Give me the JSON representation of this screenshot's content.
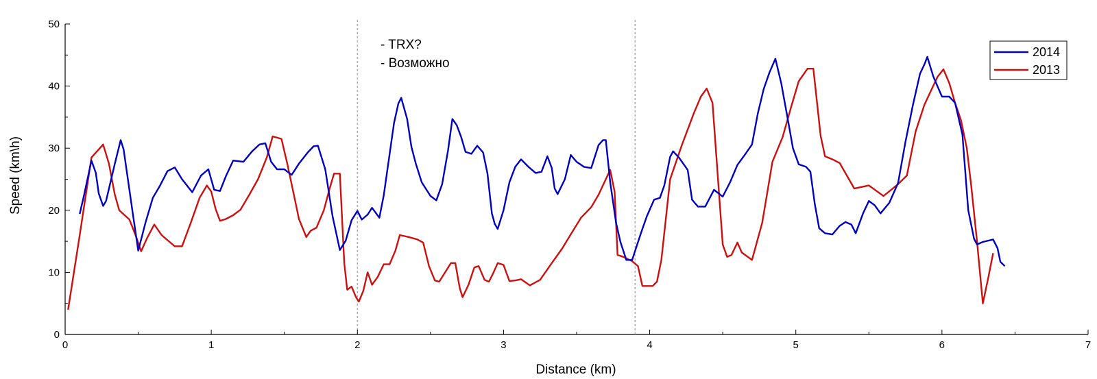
{
  "chart_data": {
    "type": "line",
    "xlabel": "Distance (km)",
    "ylabel": "Speed (km\\h)",
    "xlim": [
      0,
      7
    ],
    "ylim": [
      0,
      50
    ],
    "xticks": [
      "0",
      "1",
      "2",
      "3",
      "4",
      "5",
      "6",
      "7"
    ],
    "yticks": [
      "0",
      "10",
      "20",
      "30",
      "40",
      "50"
    ],
    "grid": false,
    "legend_position": "top-right",
    "vlines": [
      2.0,
      3.9
    ],
    "annotations": [
      "- TRX?",
      "- Возможно"
    ],
    "series": [
      {
        "name": "2014",
        "color": "#0000c0",
        "points": [
          [
            0.1,
            19.4
          ],
          [
            0.13,
            22.5
          ],
          [
            0.18,
            28.0
          ],
          [
            0.21,
            26.0
          ],
          [
            0.23,
            22.7
          ],
          [
            0.26,
            20.7
          ],
          [
            0.28,
            21.5
          ],
          [
            0.34,
            27.5
          ],
          [
            0.38,
            31.3
          ],
          [
            0.4,
            29.8
          ],
          [
            0.46,
            20.0
          ],
          [
            0.5,
            13.5
          ],
          [
            0.55,
            18.0
          ],
          [
            0.6,
            22.0
          ],
          [
            0.65,
            24.0
          ],
          [
            0.7,
            26.3
          ],
          [
            0.75,
            26.9
          ],
          [
            0.8,
            25.0
          ],
          [
            0.87,
            22.9
          ],
          [
            0.93,
            25.6
          ],
          [
            0.98,
            26.6
          ],
          [
            1.02,
            23.3
          ],
          [
            1.06,
            23.1
          ],
          [
            1.1,
            25.5
          ],
          [
            1.15,
            28.0
          ],
          [
            1.22,
            27.8
          ],
          [
            1.28,
            29.5
          ],
          [
            1.33,
            30.6
          ],
          [
            1.37,
            30.8
          ],
          [
            1.41,
            27.8
          ],
          [
            1.45,
            26.6
          ],
          [
            1.5,
            26.6
          ],
          [
            1.55,
            25.7
          ],
          [
            1.6,
            27.5
          ],
          [
            1.66,
            29.3
          ],
          [
            1.7,
            30.3
          ],
          [
            1.73,
            30.4
          ],
          [
            1.78,
            26.6
          ],
          [
            1.83,
            19.0
          ],
          [
            1.88,
            13.6
          ],
          [
            1.92,
            15.1
          ],
          [
            1.96,
            18.4
          ],
          [
            2.0,
            19.9
          ],
          [
            2.03,
            18.5
          ],
          [
            2.07,
            19.3
          ],
          [
            2.1,
            20.4
          ],
          [
            2.15,
            18.8
          ],
          [
            2.18,
            22.4
          ],
          [
            2.22,
            29.0
          ],
          [
            2.25,
            34.0
          ],
          [
            2.28,
            37.2
          ],
          [
            2.3,
            38.1
          ],
          [
            2.34,
            34.7
          ],
          [
            2.37,
            30.2
          ],
          [
            2.4,
            27.5
          ],
          [
            2.44,
            24.5
          ],
          [
            2.5,
            22.3
          ],
          [
            2.54,
            21.6
          ],
          [
            2.58,
            24.2
          ],
          [
            2.62,
            29.6
          ],
          [
            2.65,
            34.7
          ],
          [
            2.68,
            33.7
          ],
          [
            2.71,
            31.8
          ],
          [
            2.74,
            29.4
          ],
          [
            2.78,
            29.1
          ],
          [
            2.82,
            30.4
          ],
          [
            2.86,
            29.3
          ],
          [
            2.89,
            25.9
          ],
          [
            2.92,
            19.5
          ],
          [
            2.94,
            17.8
          ],
          [
            2.96,
            17.0
          ],
          [
            3.0,
            20.0
          ],
          [
            3.04,
            24.5
          ],
          [
            3.08,
            27.0
          ],
          [
            3.12,
            28.2
          ],
          [
            3.17,
            27.0
          ],
          [
            3.22,
            26.0
          ],
          [
            3.26,
            26.2
          ],
          [
            3.3,
            28.7
          ],
          [
            3.33,
            26.8
          ],
          [
            3.35,
            23.5
          ],
          [
            3.37,
            22.6
          ],
          [
            3.42,
            25.0
          ],
          [
            3.46,
            28.9
          ],
          [
            3.5,
            27.8
          ],
          [
            3.55,
            27.0
          ],
          [
            3.6,
            26.8
          ],
          [
            3.65,
            30.5
          ],
          [
            3.68,
            31.3
          ],
          [
            3.7,
            31.3
          ],
          [
            3.73,
            24.5
          ],
          [
            3.77,
            18.0
          ],
          [
            3.8,
            14.9
          ],
          [
            3.84,
            12.0
          ],
          [
            3.88,
            12.0
          ],
          [
            3.94,
            16.3
          ],
          [
            3.98,
            19.0
          ],
          [
            4.03,
            21.7
          ],
          [
            4.07,
            22.0
          ],
          [
            4.1,
            24.0
          ],
          [
            4.14,
            28.6
          ],
          [
            4.16,
            29.5
          ],
          [
            4.2,
            28.5
          ],
          [
            4.26,
            26.5
          ],
          [
            4.29,
            21.7
          ],
          [
            4.33,
            20.6
          ],
          [
            4.38,
            20.6
          ],
          [
            4.44,
            23.3
          ],
          [
            4.5,
            22.2
          ],
          [
            4.55,
            24.5
          ],
          [
            4.6,
            27.3
          ],
          [
            4.65,
            28.9
          ],
          [
            4.7,
            30.6
          ],
          [
            4.74,
            35.6
          ],
          [
            4.78,
            39.5
          ],
          [
            4.82,
            42.2
          ],
          [
            4.86,
            44.4
          ],
          [
            4.9,
            40.5
          ],
          [
            4.95,
            34.0
          ],
          [
            4.98,
            30.0
          ],
          [
            5.02,
            27.4
          ],
          [
            5.07,
            27.0
          ],
          [
            5.1,
            26.2
          ],
          [
            5.13,
            21.0
          ],
          [
            5.16,
            17.1
          ],
          [
            5.2,
            16.3
          ],
          [
            5.25,
            16.1
          ],
          [
            5.3,
            17.5
          ],
          [
            5.34,
            18.1
          ],
          [
            5.38,
            17.7
          ],
          [
            5.41,
            16.3
          ],
          [
            5.46,
            19.5
          ],
          [
            5.5,
            21.5
          ],
          [
            5.54,
            20.8
          ],
          [
            5.58,
            19.5
          ],
          [
            5.64,
            21.2
          ],
          [
            5.7,
            24.4
          ],
          [
            5.75,
            31.0
          ],
          [
            5.8,
            36.8
          ],
          [
            5.85,
            42.0
          ],
          [
            5.88,
            43.5
          ],
          [
            5.9,
            44.7
          ],
          [
            5.94,
            41.6
          ],
          [
            5.96,
            40.5
          ],
          [
            6.0,
            38.3
          ],
          [
            6.05,
            38.3
          ],
          [
            6.09,
            37.3
          ],
          [
            6.14,
            32.2
          ],
          [
            6.18,
            20.0
          ],
          [
            6.22,
            15.4
          ],
          [
            6.24,
            14.5
          ],
          [
            6.28,
            14.9
          ],
          [
            6.35,
            15.3
          ],
          [
            6.38,
            13.9
          ],
          [
            6.4,
            11.7
          ],
          [
            6.43,
            11.0
          ]
        ]
      },
      {
        "name": "2013",
        "color": "#cc1010",
        "points": [
          [
            0.02,
            4.0
          ],
          [
            0.1,
            16.0
          ],
          [
            0.18,
            28.5
          ],
          [
            0.26,
            30.6
          ],
          [
            0.3,
            27.5
          ],
          [
            0.34,
            22.5
          ],
          [
            0.37,
            20.0
          ],
          [
            0.44,
            18.5
          ],
          [
            0.49,
            15.5
          ],
          [
            0.52,
            13.4
          ],
          [
            0.56,
            15.5
          ],
          [
            0.61,
            17.7
          ],
          [
            0.66,
            16.0
          ],
          [
            0.71,
            15.0
          ],
          [
            0.75,
            14.2
          ],
          [
            0.8,
            14.2
          ],
          [
            0.86,
            18.0
          ],
          [
            0.92,
            22.0
          ],
          [
            0.97,
            24.0
          ],
          [
            1.0,
            23.0
          ],
          [
            1.03,
            20.2
          ],
          [
            1.06,
            18.3
          ],
          [
            1.1,
            18.6
          ],
          [
            1.15,
            19.2
          ],
          [
            1.2,
            20.1
          ],
          [
            1.26,
            22.5
          ],
          [
            1.32,
            25.0
          ],
          [
            1.38,
            28.5
          ],
          [
            1.42,
            31.9
          ],
          [
            1.48,
            31.5
          ],
          [
            1.52,
            27.5
          ],
          [
            1.57,
            22.0
          ],
          [
            1.6,
            18.6
          ],
          [
            1.65,
            15.7
          ],
          [
            1.68,
            16.7
          ],
          [
            1.72,
            17.2
          ],
          [
            1.77,
            20.0
          ],
          [
            1.81,
            23.5
          ],
          [
            1.84,
            25.9
          ],
          [
            1.88,
            25.9
          ],
          [
            1.91,
            11.5
          ],
          [
            1.93,
            7.2
          ],
          [
            1.96,
            7.7
          ],
          [
            1.99,
            6.0
          ],
          [
            2.01,
            5.3
          ],
          [
            2.04,
            7.0
          ],
          [
            2.07,
            10.0
          ],
          [
            2.1,
            8.0
          ],
          [
            2.14,
            9.3
          ],
          [
            2.18,
            11.3
          ],
          [
            2.22,
            11.3
          ],
          [
            2.26,
            13.5
          ],
          [
            2.29,
            16.0
          ],
          [
            2.35,
            15.7
          ],
          [
            2.41,
            15.3
          ],
          [
            2.45,
            14.8
          ],
          [
            2.49,
            11.0
          ],
          [
            2.53,
            8.7
          ],
          [
            2.56,
            8.5
          ],
          [
            2.6,
            10.0
          ],
          [
            2.64,
            11.5
          ],
          [
            2.67,
            11.5
          ],
          [
            2.7,
            7.5
          ],
          [
            2.72,
            6.0
          ],
          [
            2.76,
            8.0
          ],
          [
            2.8,
            10.8
          ],
          [
            2.83,
            11.0
          ],
          [
            2.87,
            8.8
          ],
          [
            2.9,
            8.5
          ],
          [
            2.93,
            9.9
          ],
          [
            2.96,
            11.5
          ],
          [
            3.0,
            11.2
          ],
          [
            3.04,
            8.6
          ],
          [
            3.08,
            8.7
          ],
          [
            3.12,
            8.9
          ],
          [
            3.18,
            7.9
          ],
          [
            3.25,
            8.8
          ],
          [
            3.33,
            11.5
          ],
          [
            3.4,
            13.8
          ],
          [
            3.47,
            16.5
          ],
          [
            3.53,
            18.8
          ],
          [
            3.6,
            20.5
          ],
          [
            3.65,
            22.5
          ],
          [
            3.7,
            25.0
          ],
          [
            3.73,
            26.5
          ],
          [
            3.76,
            23.0
          ],
          [
            3.78,
            12.8
          ],
          [
            3.82,
            12.5
          ],
          [
            3.88,
            11.8
          ],
          [
            3.92,
            11.0
          ],
          [
            3.95,
            7.8
          ],
          [
            3.98,
            7.8
          ],
          [
            4.02,
            7.8
          ],
          [
            4.05,
            8.5
          ],
          [
            4.08,
            12.0
          ],
          [
            4.14,
            25.0
          ],
          [
            4.22,
            30.5
          ],
          [
            4.3,
            35.5
          ],
          [
            4.35,
            38.3
          ],
          [
            4.39,
            39.6
          ],
          [
            4.43,
            37.3
          ],
          [
            4.5,
            14.5
          ],
          [
            4.53,
            12.5
          ],
          [
            4.56,
            12.8
          ],
          [
            4.6,
            14.8
          ],
          [
            4.63,
            13.2
          ],
          [
            4.7,
            12.0
          ],
          [
            4.77,
            18.0
          ],
          [
            4.84,
            27.8
          ],
          [
            4.91,
            31.8
          ],
          [
            4.97,
            36.8
          ],
          [
            5.02,
            40.8
          ],
          [
            5.08,
            42.8
          ],
          [
            5.12,
            42.8
          ],
          [
            5.17,
            32.0
          ],
          [
            5.2,
            28.7
          ],
          [
            5.26,
            28.1
          ],
          [
            5.3,
            27.6
          ],
          [
            5.4,
            23.5
          ],
          [
            5.5,
            24.0
          ],
          [
            5.6,
            22.3
          ],
          [
            5.7,
            24.2
          ],
          [
            5.76,
            25.6
          ],
          [
            5.82,
            32.7
          ],
          [
            5.88,
            37.0
          ],
          [
            5.93,
            39.5
          ],
          [
            5.97,
            41.5
          ],
          [
            6.01,
            42.7
          ],
          [
            6.05,
            40.5
          ],
          [
            6.09,
            37.3
          ],
          [
            6.13,
            34.5
          ],
          [
            6.17,
            30.0
          ],
          [
            6.2,
            24.0
          ],
          [
            6.24,
            15.0
          ],
          [
            6.28,
            5.0
          ],
          [
            6.32,
            9.5
          ],
          [
            6.35,
            13.1
          ]
        ]
      }
    ]
  }
}
